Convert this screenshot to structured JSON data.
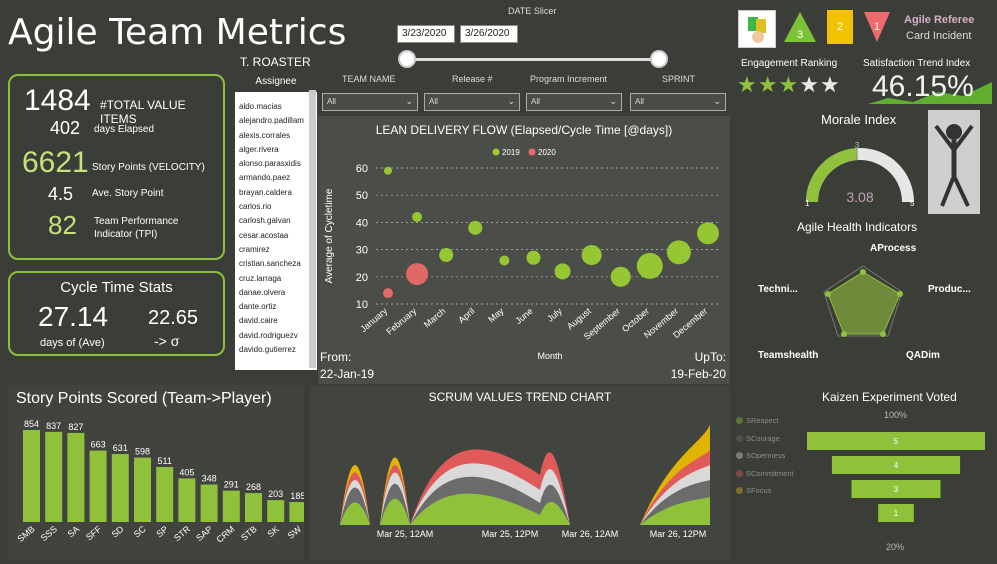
{
  "header": {
    "title": "Agile Team Metrics",
    "date_slicer_label": "DATE Slicer",
    "date_from": "3/23/2020",
    "date_to": "3/26/2020"
  },
  "summary": {
    "total_value_items": "1484",
    "total_value_label": "#TOTAL VALUE ITEMS",
    "days_elapsed": "402",
    "days_elapsed_label": "days  Elapsed",
    "velocity": "6621",
    "velocity_label": "Story Points (VELOCITY)",
    "avg_story_point": "4.5",
    "avg_story_point_label": "Ave. Story Point",
    "tpi": "82",
    "tpi_label_1": "Team Performance",
    "tpi_label_2": "Indicator (TPI)"
  },
  "cycle_time": {
    "title": "Cycle Time Stats",
    "avg": "27.14",
    "sigma": "22.65",
    "avg_label": "days  of  (Ave)",
    "sigma_label": "-> σ"
  },
  "roster": {
    "title": "T. ROASTER",
    "column": "Assignee",
    "items": [
      "aldo.macias",
      "alejandro.padillam",
      "alexis.corrales",
      "alger.rivera",
      "alonso.parasxidis",
      "armando.paez",
      "brayan.caldera",
      "carlos.rio",
      "carlosh.galvan",
      "cesar.acostaa",
      "cramirez",
      "cristian.sancheza",
      "cruz.larraga",
      "danae.olvera",
      "dante.ortiz",
      "david.caire",
      "david.rodriguezv",
      "davido.gutierrez"
    ]
  },
  "filters": [
    {
      "label": "TEAM NAME",
      "value": "All"
    },
    {
      "label": "Release #",
      "value": "All"
    },
    {
      "label": "Program Increment",
      "value": "All"
    },
    {
      "label": "SPRINT",
      "value": "All"
    }
  ],
  "lean_chart": {
    "title": "LEAN DELIVERY FLOW (Elapsed/Cycle Time [@days])",
    "ylabel": "Average of Cycletime",
    "xlabel": "Month",
    "from_label": "From:",
    "from_value": "22-Jan-19",
    "upto_label": "UpTo:",
    "upto_value": "19-Feb-20"
  },
  "story_points": {
    "title": "Story Points Scored (Team->Player)"
  },
  "scrum_trend": {
    "title": "SCRUM VALUES TREND CHART",
    "x_ticks": [
      "Mar 25, 12AM",
      "Mar 25, 12PM",
      "Mar 26, 12AM",
      "Mar 26, 12PM"
    ],
    "legend": [
      {
        "name": "SRespect",
        "color": "#8fc23a"
      },
      {
        "name": "SCourage",
        "color": "#6b6b6b"
      },
      {
        "name": "SOpenness",
        "color": "#d9d9d9"
      },
      {
        "name": "SCommitment",
        "color": "#e05a5a"
      },
      {
        "name": "SFocus",
        "color": "#e0b400"
      }
    ]
  },
  "right_panel": {
    "agile_referee": "Agile Referee",
    "card_incident": "Card Incident",
    "card_counts": [
      "3",
      "2",
      "1"
    ],
    "engagement_label": "Engagement Ranking",
    "engagement_stars": 3,
    "engagement_max": 5,
    "satisfaction_label": "Satisfaction Trend Index",
    "satisfaction_value": "46.15%",
    "morale_label": "Morale Index",
    "morale_value": "3.08",
    "morale_min": "1",
    "morale_max": "5",
    "morale_target": "3",
    "health_label": "Agile Health Indicators",
    "health_axes": [
      "AProcess",
      "Produc...",
      "QADim",
      "Teamshealth",
      "Techni..."
    ],
    "kaizen_label": "Kaizen Experiment Voted",
    "kaizen_top": "100%",
    "kaizen_bottom": "20%"
  },
  "chart_data": [
    {
      "type": "bar",
      "title": "Story Points Scored (Team->Player)",
      "categories": [
        "SMB",
        "SSS",
        "SA",
        "SFF",
        "SD",
        "SC",
        "SP",
        "STR",
        "SAP",
        "CRM",
        "STB",
        "SK",
        "SW"
      ],
      "values": [
        854,
        837,
        827,
        663,
        631,
        598,
        511,
        405,
        348,
        291,
        268,
        203,
        185
      ]
    },
    {
      "type": "scatter",
      "title": "LEAN DELIVERY FLOW (Elapsed/Cycle Time [@days])",
      "ylabel": "Average of Cycletime",
      "xlabel": "Month",
      "categories": [
        "January",
        "February",
        "March",
        "April",
        "May",
        "June",
        "July",
        "August",
        "September",
        "October",
        "November",
        "December"
      ],
      "ylim": [
        10,
        60
      ],
      "series": [
        {
          "name": "2019",
          "color": "#9acd32",
          "points": [
            {
              "x": "January",
              "y": 59,
              "size": 4
            },
            {
              "x": "February",
              "y": 42,
              "size": 5
            },
            {
              "x": "March",
              "y": 28,
              "size": 7
            },
            {
              "x": "April",
              "y": 38,
              "size": 7
            },
            {
              "x": "May",
              "y": 26,
              "size": 5
            },
            {
              "x": "June",
              "y": 27,
              "size": 7
            },
            {
              "x": "July",
              "y": 22,
              "size": 8
            },
            {
              "x": "August",
              "y": 28,
              "size": 10
            },
            {
              "x": "September",
              "y": 20,
              "size": 10
            },
            {
              "x": "October",
              "y": 24,
              "size": 13
            },
            {
              "x": "November",
              "y": 29,
              "size": 12
            },
            {
              "x": "December",
              "y": 36,
              "size": 11
            }
          ]
        },
        {
          "name": "2020",
          "color": "#e86a6a",
          "points": [
            {
              "x": "January",
              "y": 14,
              "size": 5
            },
            {
              "x": "February",
              "y": 21,
              "size": 11
            }
          ]
        }
      ]
    },
    {
      "type": "bar",
      "title": "Kaizen Experiment Voted",
      "categories": [
        "5",
        "4",
        "3",
        "1"
      ],
      "values": [
        100,
        72,
        50,
        20
      ]
    }
  ]
}
